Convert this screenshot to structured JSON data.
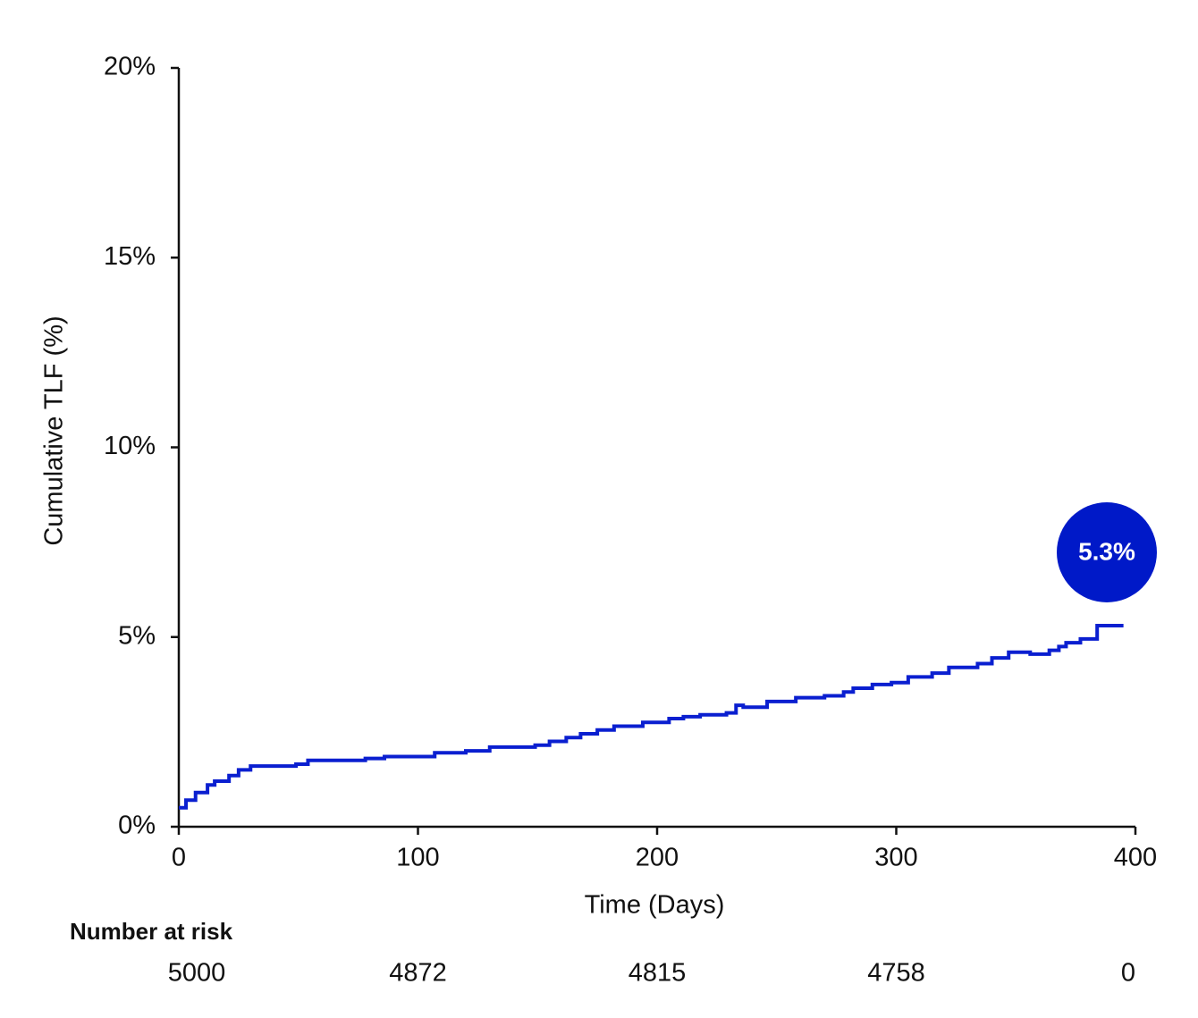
{
  "chart_data": {
    "type": "step",
    "ylabel": "Cumulative TLF (%)",
    "xlabel": "Time (Days)",
    "xlim": [
      0,
      400
    ],
    "xticks": [
      0,
      100,
      200,
      300,
      400
    ],
    "ylim": [
      0,
      20
    ],
    "yticks": [
      {
        "value": 0,
        "label": "0%"
      },
      {
        "value": 5,
        "label": "5%"
      },
      {
        "value": 10,
        "label": "10%"
      },
      {
        "value": 15,
        "label": "15%"
      },
      {
        "value": 20,
        "label": "20%"
      }
    ],
    "series": [
      {
        "color": "#0a1fd0",
        "x": [
          0,
          3,
          7,
          12,
          15,
          21,
          25,
          30,
          49,
          54,
          78,
          86,
          107,
          120,
          130,
          149,
          155,
          162,
          168,
          175,
          182,
          194,
          205,
          211,
          218,
          229,
          233,
          236,
          246,
          258,
          270,
          278,
          282,
          290,
          298,
          305,
          315,
          322,
          334,
          340,
          347,
          356,
          364,
          368,
          371,
          377,
          384,
          395
        ],
        "values": [
          0.5,
          0.7,
          0.9,
          1.1,
          1.2,
          1.35,
          1.5,
          1.6,
          1.65,
          1.75,
          1.8,
          1.85,
          1.95,
          2.0,
          2.1,
          2.15,
          2.25,
          2.35,
          2.45,
          2.55,
          2.65,
          2.75,
          2.85,
          2.9,
          2.95,
          3.0,
          3.2,
          3.15,
          3.3,
          3.4,
          3.45,
          3.55,
          3.65,
          3.75,
          3.8,
          3.95,
          4.05,
          4.2,
          4.3,
          4.45,
          4.6,
          4.55,
          4.65,
          4.75,
          4.85,
          4.95,
          5.3,
          5.3
        ]
      }
    ],
    "end_label": {
      "value": 5.3,
      "label": "5.3%",
      "color": "#0019c8"
    },
    "at_risk": {
      "title": "Number at risk",
      "values": [
        5000,
        4872,
        4815,
        4758,
        0
      ]
    }
  }
}
